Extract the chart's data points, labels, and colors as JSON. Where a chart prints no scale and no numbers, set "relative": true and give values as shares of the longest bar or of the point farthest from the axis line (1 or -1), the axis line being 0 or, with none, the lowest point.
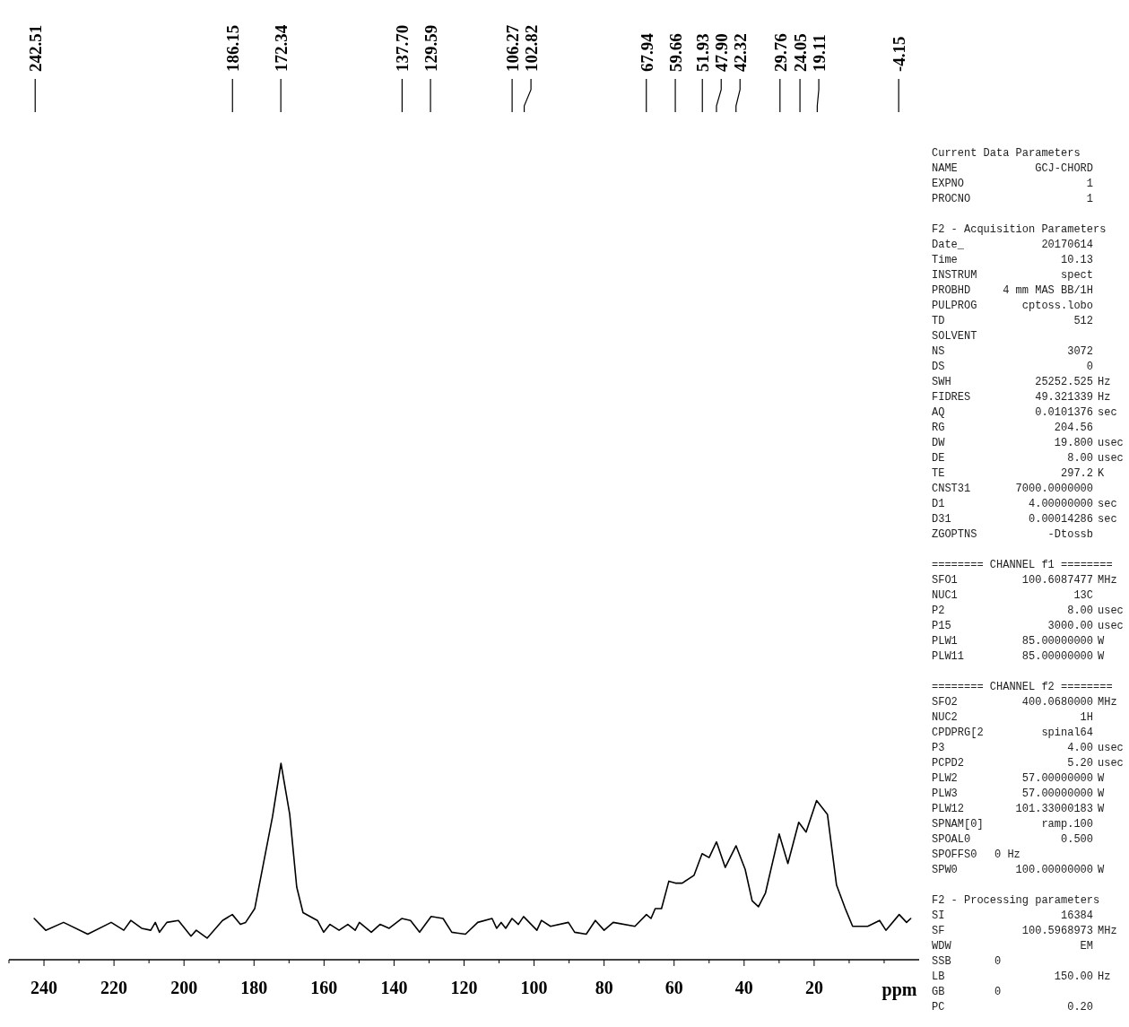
{
  "chart_data": [
    {
      "type": "line",
      "xlabel": "ppm",
      "relative": true,
      "xlim": [
        250,
        -10
      ],
      "xticks": [
        {
          "value": 250,
          "label": null
        },
        240,
        {
          "value": 230,
          "label": null
        },
        220,
        {
          "value": 210,
          "label": null
        },
        200,
        {
          "value": 190,
          "label": null
        },
        180,
        {
          "value": 170,
          "label": null
        },
        160,
        {
          "value": 150,
          "label": null
        },
        140,
        {
          "value": 130,
          "label": null
        },
        120,
        {
          "value": 110,
          "label": null
        },
        100,
        {
          "value": 90,
          "label": null
        },
        80,
        {
          "value": 70,
          "label": null
        },
        60,
        {
          "value": 50,
          "label": null
        },
        40,
        {
          "value": 30,
          "label": null
        },
        20,
        {
          "value": 10,
          "label": null
        },
        {
          "value": 0,
          "label": null
        }
      ],
      "x": [
        242.8,
        239.5,
        234.4,
        227.5,
        220.8,
        217.2,
        215.2,
        212.1,
        209.5,
        208.2,
        207.0,
        204.9,
        201.6,
        198.0,
        196.5,
        193.4,
        189.0,
        186.2,
        183.9,
        182.4,
        179.8,
        177.3,
        174.7,
        172.3,
        169.8,
        167.8,
        166.0,
        161.9,
        160.1,
        158.3,
        155.7,
        153.2,
        151.1,
        149.9,
        146.5,
        144.0,
        141.4,
        137.8,
        135.3,
        132.7,
        129.4,
        126.0,
        123.5,
        119.6,
        116.1,
        112.0,
        110.7,
        109.4,
        108.1,
        106.3,
        104.5,
        103.0,
        99.2,
        97.9,
        95.3,
        90.2,
        88.4,
        85.1,
        82.5,
        80.0,
        77.4,
        71.2,
        67.9,
        66.6,
        65.4,
        63.6,
        61.5,
        59.66,
        57.7,
        54.3,
        52.0,
        50.0,
        47.9,
        45.4,
        42.3,
        39.7,
        37.7,
        35.9,
        33.9,
        30.0,
        27.5,
        24.4,
        22.3,
        19.3,
        16.2,
        13.6,
        11.1,
        9.0,
        4.7,
        1.3,
        -0.5,
        -4.3,
        -6.4,
        -7.6
      ],
      "series": [
        {
          "color": "#000000",
          "values": [
            0.21,
            0.15,
            0.19,
            0.13,
            0.19,
            0.15,
            0.2,
            0.16,
            0.15,
            0.19,
            0.14,
            0.19,
            0.2,
            0.12,
            0.15,
            0.11,
            0.2,
            0.23,
            0.18,
            0.19,
            0.26,
            0.49,
            0.73,
            1,
            0.74,
            0.37,
            0.24,
            0.2,
            0.14,
            0.18,
            0.15,
            0.18,
            0.15,
            0.19,
            0.14,
            0.18,
            0.16,
            0.21,
            0.2,
            0.14,
            0.22,
            0.21,
            0.14,
            0.13,
            0.19,
            0.21,
            0.16,
            0.19,
            0.16,
            0.21,
            0.18,
            0.22,
            0.15,
            0.2,
            0.17,
            0.19,
            0.14,
            0.13,
            0.2,
            0.15,
            0.19,
            0.17,
            0.23,
            0.21,
            0.26,
            0.26,
            0.4,
            0.39,
            0.39,
            0.43,
            0.54,
            0.52,
            0.6,
            0.47,
            0.58,
            0.46,
            0.3,
            0.27,
            0.34,
            0.64,
            0.49,
            0.7,
            0.65,
            0.81,
            0.74,
            0.38,
            0.26,
            0.17,
            0.17,
            0.2,
            0.15,
            0.23,
            0.19,
            0.21
          ]
        }
      ],
      "annotations": [
        {
          "text": "242.51",
          "x": 242.51
        },
        {
          "text": "186.15",
          "x": 186.15
        },
        {
          "text": "172.34",
          "x": 172.34
        },
        {
          "text": "137.70",
          "x": 137.7
        },
        {
          "text": "129.59",
          "x": 129.59
        },
        {
          "text": "106.27",
          "x": 106.27
        },
        {
          "text": "102.82",
          "x": 102.82
        },
        {
          "text": "67.94",
          "x": 67.94
        },
        {
          "text": "59.66",
          "x": 59.66
        },
        {
          "text": "51.93",
          "x": 51.93
        },
        {
          "text": "47.90",
          "x": 47.9
        },
        {
          "text": "42.32",
          "x": 42.32
        },
        {
          "text": "29.76",
          "x": 29.76
        },
        {
          "text": "24.05",
          "x": 24.05
        },
        {
          "text": "19.11",
          "x": 19.11
        },
        {
          "text": "-4.15",
          "x": -4.15
        }
      ]
    },
    {
      "type": "other",
      "annotations": [
        "Current Data Parameters",
        "NAME\tGCJ-CHORD",
        "EXPNO\t1",
        "PROCNO\t1",
        "F2 - Acquisition Parameters",
        "Date_\t20170614",
        "Time\t10.13",
        "INSTRUM\tspect",
        "PROBHD\t4 mm MAS BB/1H",
        "PULPROG\tcptoss.lobo",
        "TD\t512",
        "SOLVENT\t",
        "NS\t3072",
        "DS\t0",
        "SWH\t25252.525\tHz",
        "FIDRES\t49.321339\tHz",
        "AQ\t0.0101376\tsec",
        "RG\t204.56",
        "DW\t19.800\tusec",
        "DE\t8.00\tusec",
        "TE\t297.2\tK",
        "CNST31\t7000.0000000",
        "D1\t4.00000000\tsec",
        "D31\t0.00014286\tsec",
        "ZGOPTNS\t-Dtossb",
        "======== CHANNEL f1 ========",
        "SFO1\t100.6087477\tMHz",
        "NUC1\t13C",
        "P2\t8.00\tusec",
        "P15\t3000.00\tusec",
        "PLW1\t85.00000000\tW",
        "PLW11\t85.00000000\tW",
        "======== CHANNEL f2 ========",
        "SFO2\t400.0680000\tMHz",
        "NUC2\t1H",
        "CPDPRG[2\tspinal64",
        "P3\t4.00\tusec",
        "PCPD2\t5.20\tusec",
        "PLW2\t57.00000000\tW",
        "PLW3\t57.00000000\tW",
        "PLW12\t101.33000183\tW",
        "SPNAM[0]\tramp.100",
        "SPOAL0\t0.500",
        "SPOFFS0\t\t\t0 Hz",
        "SPW0\t100.00000000\tW",
        "F2 - Processing parameters",
        "SI\t16384",
        "SF\t100.5968973\tMHz",
        "WDW\tEM",
        "SSB\t\t\t0",
        "LB\t150.00\tHz",
        "GB\t\t\t0",
        "PC\t0.20"
      ]
    }
  ]
}
